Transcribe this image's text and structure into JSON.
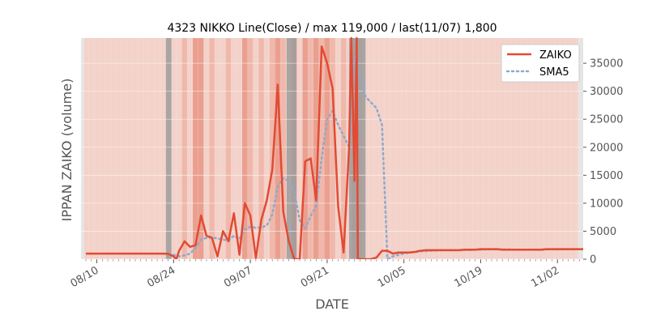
{
  "chart_data": {
    "type": "line",
    "title": "4323 NIKKO Line(Close) / max 119,000 / last(11/07) 1,800",
    "xlabel": "DATE",
    "ylabel": "IPPAN ZAIKO (volume)",
    "x_start_date": "2019-08-08",
    "x_ticks": [
      {
        "date": "2019-08-10",
        "label": "08/10"
      },
      {
        "date": "2019-08-24",
        "label": "08/24"
      },
      {
        "date": "2019-09-07",
        "label": "09/07"
      },
      {
        "date": "2019-09-21",
        "label": "09/21"
      },
      {
        "date": "2019-10-05",
        "label": "10/05"
      },
      {
        "date": "2019-10-19",
        "label": "10/19"
      },
      {
        "date": "2019-11-02",
        "label": "11/02"
      }
    ],
    "y_ticks": [
      0,
      5000,
      10000,
      15000,
      20000,
      25000,
      30000,
      35000
    ],
    "ylim": [
      0,
      39500
    ],
    "legend_position": "top-right",
    "series": [
      {
        "name": "ZAIKO",
        "color": "#e24a33",
        "style": "solid",
        "points": [
          [
            0,
            1000
          ],
          [
            1,
            1000
          ],
          [
            2,
            1000
          ],
          [
            3,
            1000
          ],
          [
            4,
            1000
          ],
          [
            5,
            1000
          ],
          [
            6,
            1000
          ],
          [
            7,
            1000
          ],
          [
            8,
            1000
          ],
          [
            9,
            1000
          ],
          [
            10,
            1000
          ],
          [
            11,
            1000
          ],
          [
            12,
            1000
          ],
          [
            13,
            1000
          ],
          [
            14,
            1000
          ],
          [
            15,
            950
          ],
          [
            16,
            500
          ],
          [
            16.5,
            0
          ],
          [
            17,
            1500
          ],
          [
            18,
            3200
          ],
          [
            19,
            2200
          ],
          [
            20,
            2500
          ],
          [
            21,
            7800
          ],
          [
            22,
            4200
          ],
          [
            23,
            3800
          ],
          [
            24,
            500
          ],
          [
            25,
            5000
          ],
          [
            26,
            3200
          ],
          [
            27,
            8200
          ],
          [
            28,
            800
          ],
          [
            29,
            10000
          ],
          [
            30,
            7800
          ],
          [
            31,
            200
          ],
          [
            32,
            7000
          ],
          [
            33,
            10500
          ],
          [
            34,
            16000
          ],
          [
            35,
            31200
          ],
          [
            36,
            8500
          ],
          [
            37,
            3200
          ],
          [
            38,
            0
          ],
          [
            39,
            0
          ],
          [
            40,
            17500
          ],
          [
            41,
            18000
          ],
          [
            42,
            10500
          ],
          [
            43,
            38000
          ],
          [
            44,
            35000
          ],
          [
            45,
            30500
          ],
          [
            46,
            9500
          ],
          [
            47,
            1200
          ],
          [
            48,
            20000
          ],
          [
            48.4,
            39500
          ],
          [
            49,
            14000
          ],
          [
            49.4,
            39500
          ],
          [
            49.6,
            0
          ],
          [
            50,
            0
          ],
          [
            51,
            0
          ],
          [
            52,
            0
          ],
          [
            53,
            300
          ],
          [
            54,
            1500
          ],
          [
            55,
            1500
          ],
          [
            56,
            1000
          ],
          [
            57,
            1200
          ],
          [
            58,
            1200
          ],
          [
            59,
            1200
          ],
          [
            60,
            1300
          ],
          [
            61,
            1500
          ],
          [
            62,
            1600
          ],
          [
            63,
            1600
          ],
          [
            64,
            1600
          ],
          [
            65,
            1600
          ],
          [
            66,
            1600
          ],
          [
            67,
            1600
          ],
          [
            68,
            1600
          ],
          [
            69,
            1700
          ],
          [
            70,
            1700
          ],
          [
            71,
            1700
          ],
          [
            72,
            1800
          ],
          [
            73,
            1800
          ],
          [
            74,
            1800
          ],
          [
            75,
            1800
          ],
          [
            76,
            1700
          ],
          [
            77,
            1700
          ],
          [
            78,
            1700
          ],
          [
            79,
            1700
          ],
          [
            80,
            1700
          ],
          [
            81,
            1700
          ],
          [
            82,
            1700
          ],
          [
            83,
            1700
          ],
          [
            84,
            1800
          ],
          [
            85,
            1800
          ],
          [
            86,
            1800
          ],
          [
            87,
            1800
          ],
          [
            88,
            1800
          ],
          [
            89,
            1800
          ],
          [
            90,
            1800
          ],
          [
            91,
            1800
          ]
        ]
      },
      {
        "name": "SMA5",
        "color": "#8eaacb",
        "style": "dotted",
        "points": [
          [
            16,
            800
          ],
          [
            17,
            500
          ],
          [
            18,
            700
          ],
          [
            19,
            1000
          ],
          [
            20,
            2000
          ],
          [
            21,
            3500
          ],
          [
            22,
            3800
          ],
          [
            23,
            3900
          ],
          [
            24,
            3700
          ],
          [
            25,
            3500
          ],
          [
            26,
            3300
          ],
          [
            27,
            4200
          ],
          [
            28,
            3600
          ],
          [
            29,
            5300
          ],
          [
            30,
            5800
          ],
          [
            31,
            5600
          ],
          [
            32,
            5700
          ],
          [
            33,
            6000
          ],
          [
            34,
            8000
          ],
          [
            35,
            13000
          ],
          [
            36,
            14500
          ],
          [
            37,
            14000
          ],
          [
            38,
            12000
          ],
          [
            39,
            7000
          ],
          [
            40,
            5500
          ],
          [
            41,
            7700
          ],
          [
            42,
            9500
          ],
          [
            43,
            18000
          ],
          [
            44,
            25000
          ],
          [
            45,
            26500
          ],
          [
            46,
            24000
          ],
          [
            47,
            22000
          ],
          [
            48,
            20000
          ],
          [
            49,
            36000
          ],
          [
            50,
            33000
          ],
          [
            51,
            29000
          ],
          [
            52,
            28000
          ],
          [
            53,
            27000
          ],
          [
            54,
            24000
          ],
          [
            55,
            0
          ],
          [
            56,
            500
          ],
          [
            57,
            800
          ],
          [
            58,
            1000
          ],
          [
            59,
            1200
          ],
          [
            60,
            1300
          ],
          [
            61,
            1400
          ],
          [
            62,
            1450
          ],
          [
            63,
            1500
          ],
          [
            64,
            1550
          ],
          [
            65,
            1600
          ],
          [
            66,
            1600
          ],
          [
            67,
            1600
          ],
          [
            68,
            1600
          ],
          [
            69,
            1650
          ],
          [
            70,
            1650
          ],
          [
            71,
            1700
          ],
          [
            72,
            1700
          ],
          [
            73,
            1750
          ],
          [
            74,
            1750
          ],
          [
            75,
            1750
          ],
          [
            76,
            1750
          ],
          [
            77,
            1750
          ],
          [
            78,
            1700
          ],
          [
            79,
            1700
          ],
          [
            80,
            1700
          ],
          [
            81,
            1700
          ],
          [
            82,
            1700
          ],
          [
            83,
            1700
          ],
          [
            84,
            1750
          ],
          [
            85,
            1750
          ],
          [
            86,
            1800
          ],
          [
            87,
            1800
          ],
          [
            88,
            1800
          ],
          [
            89,
            1800
          ],
          [
            90,
            1800
          ],
          [
            91,
            1800
          ]
        ]
      }
    ],
    "background_bands": {
      "grey_ranges": [
        [
          14.6,
          15.6
        ],
        [
          36.6,
          38.4
        ],
        [
          48.0,
          51.0
        ]
      ],
      "dark_red_days": [
        20,
        21,
        29,
        35,
        38,
        40,
        42,
        44,
        49
      ],
      "medium_red_days": [
        18,
        23,
        26,
        30,
        32,
        34,
        36,
        41,
        43,
        45,
        47,
        50
      ]
    },
    "colors": {
      "plot_background": "#e5e5e5",
      "band_light": "#f3d2ca",
      "band_medium": "#efb8ab",
      "band_dark": "#ea9f8f",
      "band_grey": "#9c9c9c"
    }
  }
}
